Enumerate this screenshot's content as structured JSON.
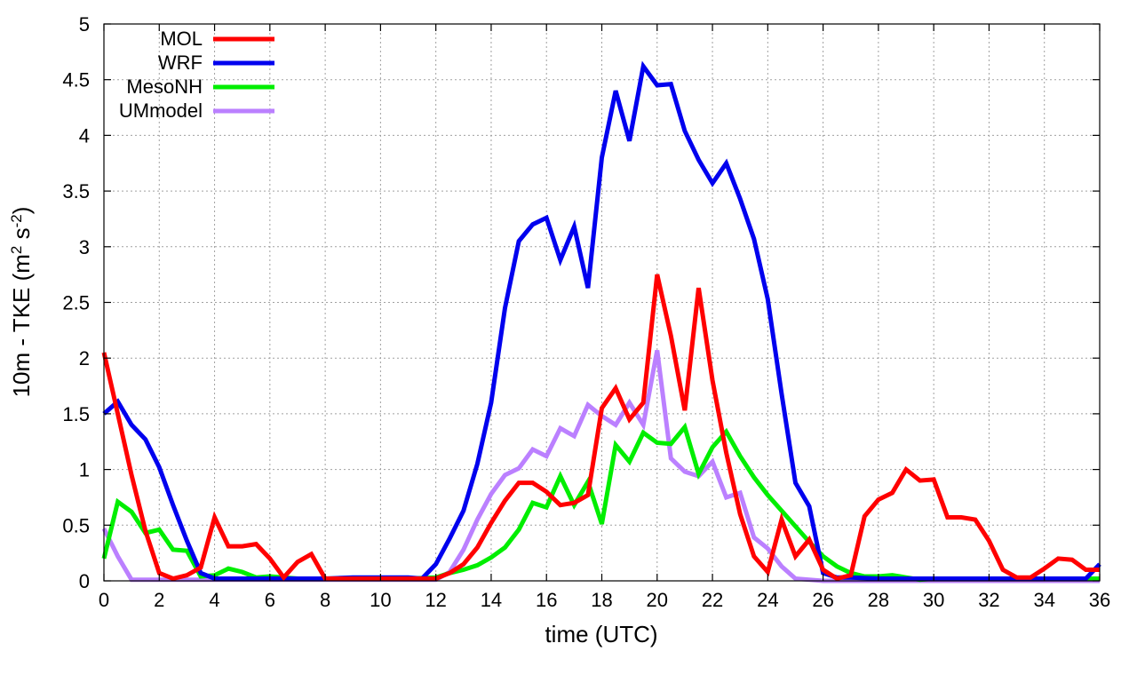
{
  "chart_data": {
    "type": "line",
    "title": "",
    "xlabel": "time (UTC)",
    "ylabel_parts": [
      "10m - TKE (m",
      "2",
      " s",
      "-2",
      ")"
    ],
    "xlim": [
      0,
      36
    ],
    "ylim": [
      0,
      5
    ],
    "xticks": [
      0,
      2,
      4,
      6,
      8,
      10,
      12,
      14,
      16,
      18,
      20,
      22,
      24,
      26,
      28,
      30,
      32,
      34,
      36
    ],
    "yticks": [
      "0",
      "0.5",
      "1",
      "1.5",
      "2",
      "2.5",
      "3",
      "3.5",
      "4",
      "4.5",
      "5"
    ],
    "grid": true,
    "legend_position": "top-left",
    "series": [
      {
        "name": "MOL",
        "color": "#ff0000",
        "points": [
          [
            0,
            2.05
          ],
          [
            0.5,
            1.5
          ],
          [
            1,
            0.95
          ],
          [
            1.5,
            0.45
          ],
          [
            2,
            0.07
          ],
          [
            2.5,
            0.02
          ],
          [
            3,
            0.05
          ],
          [
            3.5,
            0.12
          ],
          [
            4,
            0.57
          ],
          [
            4.5,
            0.31
          ],
          [
            5,
            0.31
          ],
          [
            5.5,
            0.33
          ],
          [
            6,
            0.2
          ],
          [
            6.5,
            0.03
          ],
          [
            7,
            0.17
          ],
          [
            7.5,
            0.24
          ],
          [
            8,
            0.02
          ],
          [
            9,
            0.02
          ],
          [
            10,
            0.02
          ],
          [
            11,
            0.02
          ],
          [
            12,
            0.02
          ],
          [
            12.5,
            0.07
          ],
          [
            13,
            0.15
          ],
          [
            13.5,
            0.3
          ],
          [
            14,
            0.52
          ],
          [
            14.5,
            0.72
          ],
          [
            15,
            0.88
          ],
          [
            15.5,
            0.88
          ],
          [
            16,
            0.8
          ],
          [
            16.5,
            0.68
          ],
          [
            17,
            0.7
          ],
          [
            17.5,
            0.77
          ],
          [
            18,
            1.55
          ],
          [
            18.5,
            1.73
          ],
          [
            19,
            1.45
          ],
          [
            19.5,
            1.6
          ],
          [
            20,
            2.75
          ],
          [
            20.5,
            2.2
          ],
          [
            21,
            1.53
          ],
          [
            21.5,
            2.63
          ],
          [
            22,
            1.8
          ],
          [
            22.5,
            1.15
          ],
          [
            23,
            0.6
          ],
          [
            23.5,
            0.22
          ],
          [
            24,
            0.08
          ],
          [
            24.5,
            0.55
          ],
          [
            25,
            0.22
          ],
          [
            25.5,
            0.37
          ],
          [
            26,
            0.1
          ],
          [
            26.5,
            0.02
          ],
          [
            27,
            0.05
          ],
          [
            27.5,
            0.58
          ],
          [
            28,
            0.73
          ],
          [
            28.5,
            0.79
          ],
          [
            29,
            1.0
          ],
          [
            29.5,
            0.9
          ],
          [
            30,
            0.91
          ],
          [
            30.5,
            0.57
          ],
          [
            31,
            0.57
          ],
          [
            31.5,
            0.55
          ],
          [
            32,
            0.36
          ],
          [
            32.5,
            0.1
          ],
          [
            33,
            0.03
          ],
          [
            33.5,
            0.03
          ],
          [
            34,
            0.11
          ],
          [
            34.5,
            0.2
          ],
          [
            35,
            0.19
          ],
          [
            35.5,
            0.1
          ],
          [
            36,
            0.1
          ]
        ]
      },
      {
        "name": "WRF",
        "color": "#0000ee",
        "points": [
          [
            0,
            1.5
          ],
          [
            0.5,
            1.61
          ],
          [
            1,
            1.4
          ],
          [
            1.5,
            1.27
          ],
          [
            2,
            1.02
          ],
          [
            2.5,
            0.68
          ],
          [
            3,
            0.36
          ],
          [
            3.5,
            0.07
          ],
          [
            4,
            0.02
          ],
          [
            5,
            0.02
          ],
          [
            6,
            0.02
          ],
          [
            7,
            0.02
          ],
          [
            8,
            0.02
          ],
          [
            9,
            0.03
          ],
          [
            10,
            0.03
          ],
          [
            11,
            0.03
          ],
          [
            11.5,
            0.02
          ],
          [
            12,
            0.15
          ],
          [
            12.5,
            0.38
          ],
          [
            13,
            0.63
          ],
          [
            13.5,
            1.05
          ],
          [
            14,
            1.6
          ],
          [
            14.5,
            2.45
          ],
          [
            15,
            3.05
          ],
          [
            15.5,
            3.2
          ],
          [
            16,
            3.26
          ],
          [
            16.5,
            2.88
          ],
          [
            17,
            3.18
          ],
          [
            17.5,
            2.63
          ],
          [
            18,
            3.8
          ],
          [
            18.5,
            4.4
          ],
          [
            19,
            3.95
          ],
          [
            19.5,
            4.62
          ],
          [
            20,
            4.45
          ],
          [
            20.5,
            4.46
          ],
          [
            21,
            4.04
          ],
          [
            21.5,
            3.78
          ],
          [
            22,
            3.57
          ],
          [
            22.5,
            3.75
          ],
          [
            23,
            3.43
          ],
          [
            23.5,
            3.07
          ],
          [
            24,
            2.53
          ],
          [
            24.5,
            1.68
          ],
          [
            25,
            0.88
          ],
          [
            25.5,
            0.67
          ],
          [
            26,
            0.07
          ],
          [
            26.5,
            0.03
          ],
          [
            27,
            0.03
          ],
          [
            28,
            0.02
          ],
          [
            29,
            0.02
          ],
          [
            30,
            0.02
          ],
          [
            31,
            0.02
          ],
          [
            32,
            0.02
          ],
          [
            33,
            0.02
          ],
          [
            34,
            0.02
          ],
          [
            35,
            0.02
          ],
          [
            35.5,
            0.02
          ],
          [
            36,
            0.15
          ]
        ]
      },
      {
        "name": "MesoNH",
        "color": "#00ee00",
        "points": [
          [
            0,
            0.2
          ],
          [
            0.5,
            0.71
          ],
          [
            1,
            0.62
          ],
          [
            1.5,
            0.43
          ],
          [
            2,
            0.46
          ],
          [
            2.5,
            0.28
          ],
          [
            3,
            0.27
          ],
          [
            3.5,
            0.04
          ],
          [
            4,
            0.05
          ],
          [
            4.5,
            0.11
          ],
          [
            5,
            0.08
          ],
          [
            5.5,
            0.03
          ],
          [
            6,
            0.04
          ],
          [
            7,
            0.02
          ],
          [
            8,
            0.02
          ],
          [
            9,
            0.02
          ],
          [
            10,
            0.02
          ],
          [
            11,
            0.02
          ],
          [
            12,
            0.03
          ],
          [
            12.5,
            0.07
          ],
          [
            13,
            0.1
          ],
          [
            13.5,
            0.14
          ],
          [
            14,
            0.21
          ],
          [
            14.5,
            0.3
          ],
          [
            15,
            0.46
          ],
          [
            15.5,
            0.7
          ],
          [
            16,
            0.66
          ],
          [
            16.5,
            0.94
          ],
          [
            17,
            0.68
          ],
          [
            17.5,
            0.89
          ],
          [
            18,
            0.51
          ],
          [
            18.5,
            1.22
          ],
          [
            19,
            1.07
          ],
          [
            19.5,
            1.33
          ],
          [
            20,
            1.24
          ],
          [
            20.5,
            1.23
          ],
          [
            21,
            1.38
          ],
          [
            21.5,
            0.96
          ],
          [
            22,
            1.2
          ],
          [
            22.5,
            1.34
          ],
          [
            23,
            1.12
          ],
          [
            23.5,
            0.93
          ],
          [
            24,
            0.77
          ],
          [
            24.5,
            0.63
          ],
          [
            25,
            0.49
          ],
          [
            25.5,
            0.35
          ],
          [
            26,
            0.22
          ],
          [
            26.5,
            0.13
          ],
          [
            27,
            0.07
          ],
          [
            27.5,
            0.04
          ],
          [
            28,
            0.04
          ],
          [
            28.5,
            0.05
          ],
          [
            29,
            0.03
          ],
          [
            29.5,
            0.01
          ],
          [
            30,
            0.02
          ],
          [
            31,
            0.02
          ],
          [
            32,
            0.02
          ],
          [
            33,
            0.02
          ],
          [
            34,
            0.02
          ],
          [
            35,
            0.02
          ],
          [
            36,
            0.02
          ]
        ]
      },
      {
        "name": "UMmodel",
        "color": "#bb80ff",
        "points": [
          [
            0,
            0.47
          ],
          [
            0.5,
            0.22
          ],
          [
            1,
            0.01
          ],
          [
            1.5,
            0.01
          ],
          [
            2,
            0.01
          ],
          [
            3,
            0.01
          ],
          [
            4,
            0.01
          ],
          [
            5,
            0.01
          ],
          [
            6,
            0.01
          ],
          [
            7,
            0.01
          ],
          [
            8,
            0.01
          ],
          [
            9,
            0.01
          ],
          [
            10,
            0.01
          ],
          [
            11,
            0.01
          ],
          [
            12,
            0.01
          ],
          [
            12.5,
            0.08
          ],
          [
            13,
            0.28
          ],
          [
            13.5,
            0.55
          ],
          [
            14,
            0.78
          ],
          [
            14.5,
            0.95
          ],
          [
            15,
            1.01
          ],
          [
            15.5,
            1.18
          ],
          [
            16,
            1.12
          ],
          [
            16.5,
            1.37
          ],
          [
            17,
            1.3
          ],
          [
            17.5,
            1.58
          ],
          [
            18,
            1.48
          ],
          [
            18.5,
            1.4
          ],
          [
            19,
            1.6
          ],
          [
            19.5,
            1.4
          ],
          [
            20,
            2.07
          ],
          [
            20.5,
            1.1
          ],
          [
            21,
            0.98
          ],
          [
            21.5,
            0.94
          ],
          [
            22,
            1.07
          ],
          [
            22.5,
            0.75
          ],
          [
            23,
            0.79
          ],
          [
            23.5,
            0.39
          ],
          [
            24,
            0.29
          ],
          [
            24.5,
            0.13
          ],
          [
            25,
            0.02
          ],
          [
            26,
            0.0
          ],
          [
            27,
            0.0
          ],
          [
            28,
            0.0
          ],
          [
            29,
            0.0
          ],
          [
            30,
            0.0
          ],
          [
            31,
            0.0
          ],
          [
            32,
            0.0
          ],
          [
            33,
            0.0
          ],
          [
            34,
            0.0
          ],
          [
            35,
            0.0
          ],
          [
            36,
            0.0
          ]
        ]
      }
    ]
  }
}
